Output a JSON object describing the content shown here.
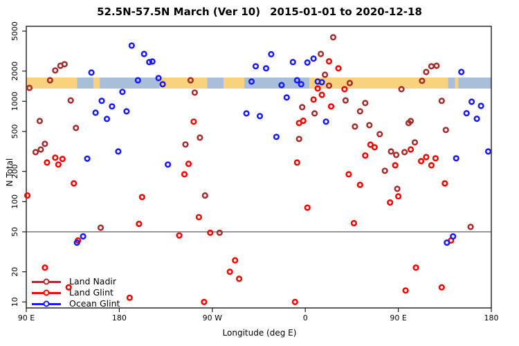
{
  "title": {
    "region_period": "52.5N-57.5N March (Ver 10)",
    "date_range": "2015-01-01 to 2020-12-18"
  },
  "chart_data": {
    "type": "scatter",
    "title": "52.5N-57.5N March (Ver 10)  2015-01-01 to 2020-12-18",
    "xlabel": "Longitude (deg E)",
    "ylabel": "N Total",
    "x_scale": "linear-wrapped-longitude",
    "y_scale": "log",
    "xlim": [
      90,
      540
    ],
    "ylim": [
      8,
      6300
    ],
    "x_ticks": [
      {
        "lon": 90,
        "label": "90 E"
      },
      {
        "lon": 180,
        "label": "180"
      },
      {
        "lon": 270,
        "label": "90 W"
      },
      {
        "lon": 360,
        "label": "0"
      },
      {
        "lon": 450,
        "label": "90 E"
      },
      {
        "lon": 540,
        "label": "180"
      }
    ],
    "y_ticks": [
      "5000",
      "2000",
      "1000",
      "500",
      "200",
      "100",
      "50",
      "20",
      "10"
    ],
    "reference_hline_value": 50,
    "grid": "off",
    "legend_position": "bottom-left",
    "map_band": {
      "description": "land/ocean strip for 52.5N-57.5N latitude zone",
      "land_color": "#F8D27D",
      "ocean_color": "#A9BED9",
      "segments": [
        {
          "from": 90,
          "to": 139,
          "type": "land"
        },
        {
          "from": 139,
          "to": 155,
          "type": "ocean"
        },
        {
          "from": 155,
          "to": 161,
          "type": "land"
        },
        {
          "from": 161,
          "to": 219,
          "type": "ocean"
        },
        {
          "from": 219,
          "to": 265,
          "type": "land"
        },
        {
          "from": 265,
          "to": 281,
          "type": "ocean"
        },
        {
          "from": 281,
          "to": 301,
          "type": "land"
        },
        {
          "from": 301,
          "to": 364,
          "type": "ocean"
        },
        {
          "from": 364,
          "to": 498,
          "type": "land"
        },
        {
          "from": 498,
          "to": 505,
          "type": "ocean"
        },
        {
          "from": 505,
          "to": 508,
          "type": "land"
        },
        {
          "from": 508,
          "to": 540,
          "type": "ocean"
        }
      ]
    },
    "series": [
      {
        "name": "Land Nadir",
        "color": "#A42D2D",
        "points": [
          [
            93,
            1360
          ],
          [
            103,
            635
          ],
          [
            108,
            376
          ],
          [
            99,
            311
          ],
          [
            104,
            331
          ],
          [
            113,
            1620
          ],
          [
            118,
            2030
          ],
          [
            123,
            2260
          ],
          [
            127,
            2340
          ],
          [
            133,
            1020
          ],
          [
            138,
            542
          ],
          [
            162,
            55
          ],
          [
            249,
            1620
          ],
          [
            253,
            1220
          ],
          [
            258,
            434
          ],
          [
            244,
            371
          ],
          [
            263,
            115
          ],
          [
            354,
            421
          ],
          [
            357,
            873
          ],
          [
            369,
            757
          ],
          [
            375,
            2960
          ],
          [
            387,
            4340
          ],
          [
            379,
            1840
          ],
          [
            383,
            1430
          ],
          [
            403,
            1520
          ],
          [
            399,
            1020
          ],
          [
            418,
            961
          ],
          [
            413,
            794
          ],
          [
            453,
            1320
          ],
          [
            473,
            1600
          ],
          [
            477,
            1960
          ],
          [
            482,
            2230
          ],
          [
            487,
            2260
          ],
          [
            492,
            1010
          ],
          [
            462,
            635
          ],
          [
            408,
            560
          ],
          [
            422,
            578
          ],
          [
            460,
            607
          ],
          [
            432,
            470
          ],
          [
            466,
            389
          ],
          [
            443,
            316
          ],
          [
            448,
            292
          ],
          [
            456,
            311
          ],
          [
            496,
            518
          ],
          [
            437,
            203
          ],
          [
            449,
            134
          ],
          [
            520,
            56
          ],
          [
            277,
            49
          ]
        ]
      },
      {
        "name": "Land Glint",
        "color": "#FF0000",
        "points": [
          [
            383,
            2500
          ],
          [
            392,
            2130
          ],
          [
            398,
            1320
          ],
          [
            376,
            1160
          ],
          [
            372,
            1340
          ],
          [
            368,
            1040
          ],
          [
            385,
            888
          ],
          [
            358,
            640
          ],
          [
            354,
            607
          ],
          [
            252,
            626
          ],
          [
            110,
            245
          ],
          [
            118,
            274
          ],
          [
            121,
            234
          ],
          [
            125,
            266
          ],
          [
            136,
            152
          ],
          [
            91,
            115
          ],
          [
            202,
            111
          ],
          [
            247,
            238
          ],
          [
            243,
            187
          ],
          [
            352,
            245
          ],
          [
            362,
            87
          ],
          [
            257,
            70
          ],
          [
            423,
            370
          ],
          [
            427,
            348
          ],
          [
            418,
            288
          ],
          [
            462,
            331
          ],
          [
            472,
            253
          ],
          [
            477,
            278
          ],
          [
            482,
            230
          ],
          [
            486,
            270
          ],
          [
            447,
            230
          ],
          [
            402,
            187
          ],
          [
            413,
            147
          ],
          [
            450,
            113
          ],
          [
            442,
            98
          ],
          [
            495,
            152
          ],
          [
            199,
            60
          ],
          [
            238,
            46
          ],
          [
            268,
            49
          ],
          [
            140,
            41
          ],
          [
            108,
            22
          ],
          [
            131,
            14
          ],
          [
            190,
            11
          ],
          [
            292,
            26
          ],
          [
            287,
            20
          ],
          [
            296,
            17
          ],
          [
            262,
            10
          ],
          [
            407,
            61
          ],
          [
            501,
            41
          ],
          [
            467,
            22
          ],
          [
            457,
            13
          ],
          [
            492,
            14
          ],
          [
            350,
            10
          ]
        ]
      },
      {
        "name": "Ocean Glint",
        "color": "#1A1AFF",
        "points": [
          [
            192,
            3590
          ],
          [
            204,
            2960
          ],
          [
            209,
            2460
          ],
          [
            212,
            2490
          ],
          [
            153,
            1930
          ],
          [
            198,
            1620
          ],
          [
            218,
            1700
          ],
          [
            222,
            1480
          ],
          [
            183,
            1240
          ],
          [
            163,
            1010
          ],
          [
            173,
            888
          ],
          [
            187,
            794
          ],
          [
            157,
            769
          ],
          [
            168,
            667
          ],
          [
            312,
            2230
          ],
          [
            322,
            2130
          ],
          [
            327,
            2940
          ],
          [
            348,
            2460
          ],
          [
            362,
            2430
          ],
          [
            368,
            2660
          ],
          [
            308,
            1570
          ],
          [
            337,
            1450
          ],
          [
            352,
            1620
          ],
          [
            356,
            1480
          ],
          [
            372,
            1570
          ],
          [
            376,
            1550
          ],
          [
            342,
            1090
          ],
          [
            303,
            757
          ],
          [
            316,
            711
          ],
          [
            380,
            626
          ],
          [
            332,
            442
          ],
          [
            149,
            268
          ],
          [
            179,
            316
          ],
          [
            227,
            234
          ],
          [
            511,
            1960
          ],
          [
            521,
            990
          ],
          [
            530,
            900
          ],
          [
            516,
            760
          ],
          [
            526,
            670
          ],
          [
            537,
            316
          ],
          [
            506,
            270
          ],
          [
            145,
            45
          ],
          [
            139,
            39
          ],
          [
            503,
            45
          ],
          [
            497,
            39
          ]
        ]
      }
    ]
  },
  "legend": {
    "items": [
      {
        "label": "Land Nadir"
      },
      {
        "label": "Land Glint"
      },
      {
        "label": "Ocean Glint"
      }
    ]
  }
}
